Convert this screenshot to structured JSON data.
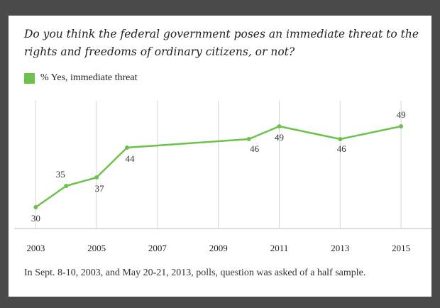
{
  "chart_data": {
    "type": "line",
    "title": "Do you think the federal government poses an immediate threat to the rights and freedoms of ordinary citizens, or not?",
    "series": [
      {
        "name": "% Yes, immediate threat",
        "points": [
          {
            "x": 2003.0,
            "y": 30
          },
          {
            "x": 2004.0,
            "y": 35
          },
          {
            "x": 2005.0,
            "y": 37
          },
          {
            "x": 2006.0,
            "y": 44
          },
          {
            "x": 2010.0,
            "y": 46
          },
          {
            "x": 2011.0,
            "y": 49
          },
          {
            "x": 2013.0,
            "y": 46
          },
          {
            "x": 2015.0,
            "y": 49
          }
        ],
        "labels": [
          "30",
          "35",
          "37",
          "44",
          "46",
          "49",
          "46",
          "49"
        ]
      }
    ],
    "x_ticks": [
      "2003",
      "2005",
      "2007",
      "2009",
      "2011",
      "2013",
      "2015"
    ],
    "xlim": [
      2002.2,
      2016.0
    ],
    "ylim": [
      25,
      55
    ],
    "grid": "vertical",
    "legend": "top-left",
    "footnote": "In Sept. 8-10, 2003, and May 20-21, 2013, polls, question was asked of a half sample.",
    "colors": {
      "line": "#6cc24a",
      "grid": "#d6d6d6",
      "axis": "#bdbdbd"
    }
  }
}
